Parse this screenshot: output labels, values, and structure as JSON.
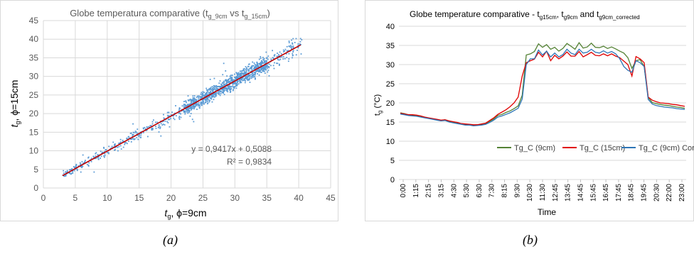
{
  "panel_labels": [
    "(a)",
    "(b)"
  ],
  "chart_data": [
    {
      "type": "scatter",
      "title_main": "Globe temperatura comparative",
      "title_paren_open": "(t",
      "title_sub1": "g_9cm",
      "title_vs": " vs t",
      "title_sub2": "g_15cm",
      "title_paren_close": ")",
      "xlabel_italic": "t",
      "xlabel_sub": "g",
      "xlabel_rest": ", ϕ=9cm",
      "ylabel_italic": "t",
      "ylabel_sub": "g",
      "ylabel_rest": ", ϕ=15cm",
      "xlim": [
        0,
        45
      ],
      "ylim": [
        0,
        45
      ],
      "xticks": [
        "0",
        "5",
        "10",
        "15",
        "20",
        "25",
        "30",
        "35",
        "40",
        "45"
      ],
      "yticks": [
        "0",
        "5",
        "10",
        "15",
        "20",
        "25",
        "30",
        "35",
        "40",
        "45"
      ],
      "grid": true,
      "point_color": "#5b9bd5",
      "trend_color": "#c00000",
      "trendline": {
        "slope": 0.9417,
        "intercept": 0.5088,
        "x_range": [
          3,
          40.3
        ]
      },
      "equation": "y = 0,9417x + 0,5088",
      "r2": "R² = 0,9834",
      "cloud": {
        "x_range": [
          3,
          40.5
        ],
        "spread": 0.75
      }
    },
    {
      "type": "line",
      "title_main": "Globe temperature comparative - t",
      "title_sub1": "g15cm",
      "title_sep1": ", t",
      "title_sub2": "g9cm",
      "title_sep2": " and t",
      "title_sub3": "g9cm_corrected",
      "xlabel": "Time",
      "ylabel_main": "t",
      "ylabel_sub": "g",
      "ylabel_unit": " (°C)",
      "ylim": [
        0,
        40
      ],
      "yticks": [
        "0",
        "5",
        "10",
        "15",
        "20",
        "25",
        "30",
        "35",
        "40"
      ],
      "xticks": [
        "0:00",
        "1:15",
        "2:15",
        "3:15",
        "4:30",
        "5:30",
        "6:30",
        "7:30",
        "8:15",
        "9:30",
        "10:30",
        "11:30",
        "12:45",
        "13:45",
        "14:45",
        "15:45",
        "16:45",
        "17:45",
        "18:45",
        "19:45",
        "20:30",
        "22:00",
        "23:00"
      ],
      "grid": true,
      "legend_position": "bottom",
      "series": [
        {
          "name": "Tg_C (9cm)",
          "color": "#548235",
          "values": [
            17.4,
            17.2,
            16.9,
            16.8,
            16.7,
            16.5,
            16.2,
            16.0,
            15.8,
            15.6,
            15.4,
            15.6,
            15.2,
            15.0,
            14.8,
            14.5,
            14.4,
            14.3,
            14.2,
            14.3,
            14.4,
            14.6,
            15.2,
            15.8,
            16.7,
            17.0,
            17.5,
            17.9,
            18.5,
            19.2,
            22.0,
            32.5,
            32.8,
            33.4,
            35.4,
            34.5,
            35.2,
            34.0,
            34.5,
            33.5,
            34.2,
            35.5,
            34.8,
            34.0,
            35.7,
            34.3,
            34.6,
            35.6,
            34.5,
            34.4,
            34.8,
            34.2,
            34.6,
            34.1,
            33.5,
            33.0,
            31.8,
            29.0,
            31.0,
            31.3,
            29.5,
            21.4,
            20.1,
            19.8,
            19.6,
            19.4,
            19.3,
            19.1,
            18.9,
            18.8,
            18.6
          ]
        },
        {
          "name": "Tg_C (15cm)",
          "color": "#e00000",
          "values": [
            17.3,
            17.1,
            16.9,
            16.9,
            16.8,
            16.6,
            16.3,
            16.1,
            15.9,
            15.7,
            15.5,
            15.6,
            15.3,
            15.1,
            14.9,
            14.6,
            14.5,
            14.4,
            14.3,
            14.3,
            14.5,
            14.7,
            15.4,
            16.1,
            17.0,
            17.6,
            18.2,
            19.0,
            20.0,
            21.5,
            27.0,
            30.5,
            31.0,
            31.4,
            33.2,
            32.0,
            33.5,
            31.0,
            32.4,
            31.5,
            32.2,
            33.3,
            32.2,
            32.2,
            33.4,
            32.0,
            32.6,
            33.2,
            32.4,
            32.3,
            32.8,
            32.3,
            32.8,
            32.2,
            31.8,
            30.9,
            30.0,
            27.0,
            32.1,
            31.5,
            30.5,
            21.5,
            20.7,
            20.3,
            20.0,
            19.9,
            19.8,
            19.6,
            19.5,
            19.3,
            19.1
          ]
        },
        {
          "name": "Tg_C (9cm) Corr",
          "color": "#2e75b6",
          "values": [
            17.1,
            16.9,
            16.7,
            16.6,
            16.5,
            16.3,
            16.1,
            15.9,
            15.7,
            15.5,
            15.3,
            15.4,
            15.0,
            14.8,
            14.6,
            14.4,
            14.2,
            14.2,
            14.0,
            14.1,
            14.2,
            14.4,
            14.9,
            15.5,
            16.3,
            16.6,
            17.0,
            17.4,
            18.0,
            18.6,
            21.0,
            30.0,
            31.5,
            31.5,
            33.8,
            32.5,
            33.5,
            32.0,
            33.0,
            32.0,
            32.6,
            34.0,
            33.0,
            32.6,
            34.0,
            33.0,
            33.2,
            34.0,
            33.2,
            33.0,
            33.6,
            33.0,
            33.4,
            32.8,
            31.5,
            29.5,
            28.5,
            28.0,
            31.0,
            30.5,
            29.5,
            20.9,
            19.7,
            19.3,
            19.1,
            18.9,
            18.8,
            18.7,
            18.5,
            18.4,
            18.3
          ]
        }
      ]
    }
  ]
}
